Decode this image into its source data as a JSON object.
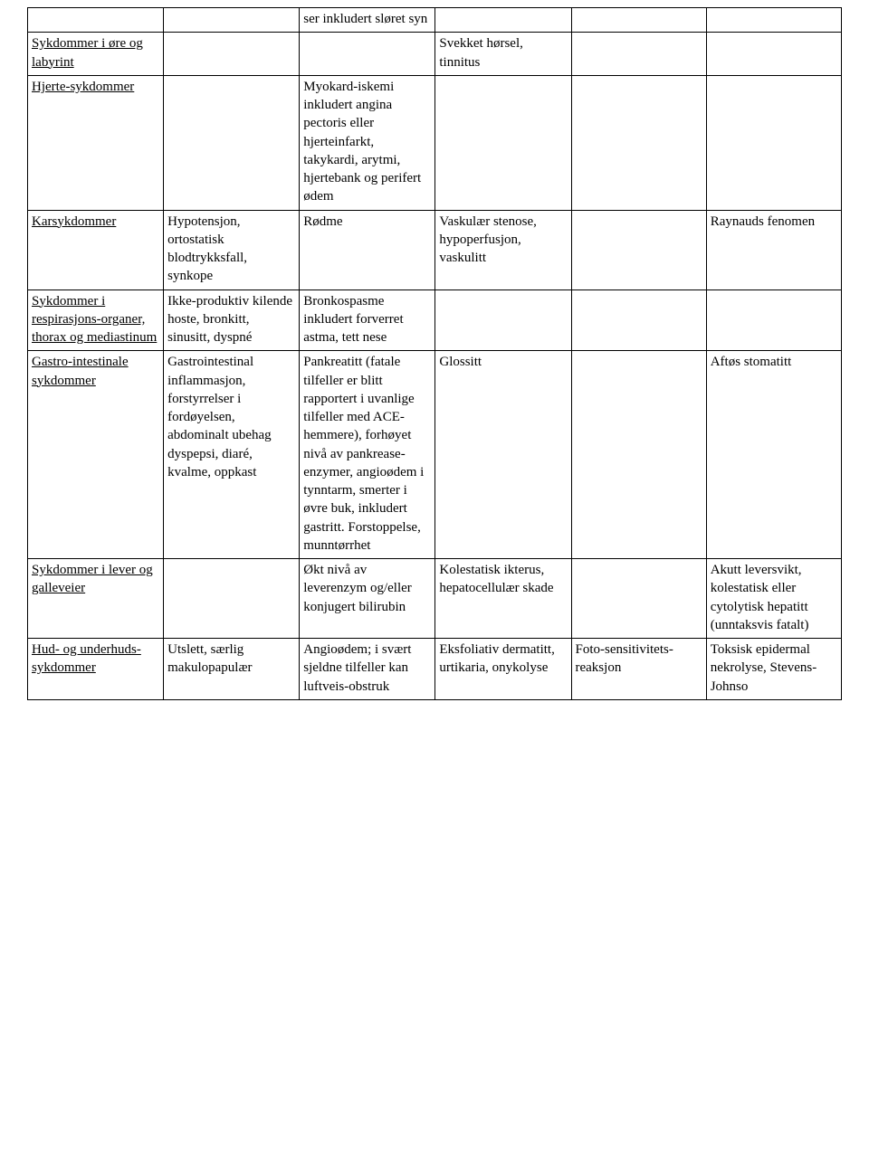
{
  "table": {
    "column_widths_pct": [
      16.7,
      16.7,
      16.7,
      16.7,
      16.6,
      16.6
    ],
    "border_color": "#000000",
    "background_color": "#ffffff",
    "font_family": "Times New Roman",
    "base_fontsize_pt": 12,
    "rows": [
      {
        "c0": "",
        "c1": "",
        "c2": "ser inkludert sløret syn",
        "c3": "",
        "c4": "",
        "c5": ""
      },
      {
        "c0": "Sykdommer i øre og labyrint",
        "c1": "",
        "c2": "",
        "c3": "Svekket hørsel, tinnitus",
        "c4": "",
        "c5": ""
      },
      {
        "c0": "Hjerte-sykdommer",
        "c1": "",
        "c2": "Myokard-iskemi inkludert angina pectoris eller hjerteinfarkt, takykardi, arytmi, hjertebank og perifert ødem",
        "c3": "",
        "c4": "",
        "c5": ""
      },
      {
        "c0": "Karsykdommer",
        "c1": "Hypotensjon, ortostatisk blodtrykksfall, synkope",
        "c2": "Rødme",
        "c3": "Vaskulær stenose, hypoperfusjon, vaskulitt",
        "c4": "",
        "c5": "Raynauds fenomen"
      },
      {
        "c0": "Sykdommer i respirasjons-organer, thorax og mediastinum",
        "c1": "Ikke-produktiv kilende hoste, bronkitt, sinusitt, dyspné",
        "c2": "Bronkospasme inkludert forverret astma, tett nese",
        "c3": "",
        "c4": "",
        "c5": ""
      },
      {
        "c0": "Gastro-intestinale sykdommer",
        "c1": "Gastrointestinal inflammasjon, forstyrrelser i fordøyelsen, abdominalt ubehag dyspepsi, diaré, kvalme, oppkast",
        "c2": "Pankreatitt (fatale tilfeller er blitt rapportert i uvanlige tilfeller med ACE-hemmere), forhøyet nivå av pankrease-enzymer, angioødem i tynntarm, smerter i øvre buk, inkludert gastritt. Forstoppelse, munntørrhet",
        "c3": "Glossitt",
        "c4": "",
        "c5": "Aftøs stomatitt"
      },
      {
        "c0": "Sykdommer i lever og galleveier",
        "c1": "",
        "c2": "Økt nivå av leverenzym og/eller konjugert bilirubin",
        "c3": "Kolestatisk ikterus, hepatocellulær skade",
        "c4": "",
        "c5": "Akutt leversvikt, kolestatisk eller cytolytisk hepatitt (unntaksvis fatalt)"
      },
      {
        "c0": "Hud- og underhuds-sykdommer",
        "c1": "Utslett, særlig makulopapulær",
        "c2": "Angioødem; i svært sjeldne tilfeller kan luftveis-obstruk",
        "c3": "Eksfoliativ dermatitt, urtikaria, onykolyse",
        "c4": "Foto-sensitivitets-reaksjon",
        "c5": "Toksisk epidermal nekrolyse, Stevens-Johnso"
      }
    ]
  }
}
